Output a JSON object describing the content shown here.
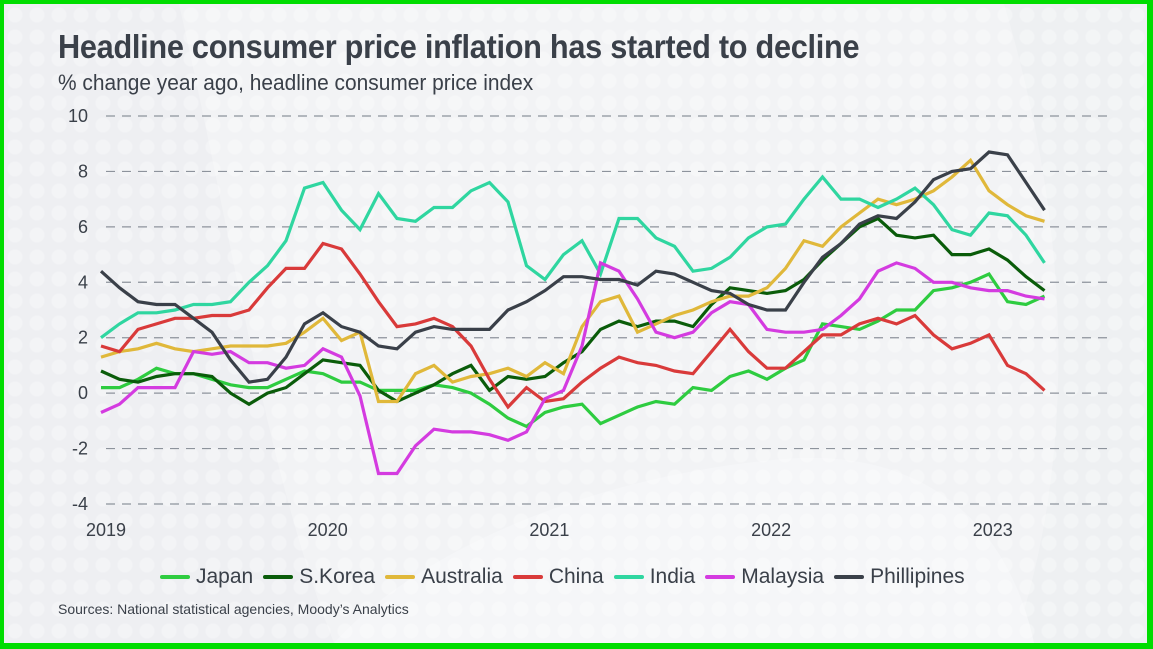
{
  "header": {
    "title": "Headline consumer price inflation has started to decline",
    "subtitle": "% change year ago, headline consumer price index"
  },
  "footer": {
    "source": "Sources: National statistical agencies, Moody’s Analytics"
  },
  "colors": {
    "frame_border": "#00dd00",
    "background": "#f2f3f5",
    "text": "#3a4049",
    "grid": "#8d939c"
  },
  "chart_data": {
    "type": "line",
    "title": "Headline consumer price inflation has started to decline",
    "subtitle": "% change year ago, headline consumer price index",
    "xlabel": "",
    "ylabel": "",
    "ylim": [
      -4,
      10
    ],
    "yticks": [
      "10",
      "8",
      "6",
      "4",
      "2",
      "0",
      "-2",
      "-4"
    ],
    "ytick_values": [
      10,
      8,
      6,
      4,
      2,
      0,
      -2,
      -4
    ],
    "xticks": [
      "2019",
      "2020",
      "2021",
      "2022",
      "2023"
    ],
    "x_start": "2019-01",
    "x_end": "2023-03",
    "frequency": "monthly",
    "grid": "horizontal dashed",
    "legend_position": "bottom",
    "series": [
      {
        "name": "Japan",
        "color": "#2ecc40",
        "values": [
          0.2,
          0.2,
          0.5,
          0.9,
          0.7,
          0.7,
          0.5,
          0.3,
          0.2,
          0.2,
          0.5,
          0.8,
          0.7,
          0.4,
          0.4,
          0.1,
          0.1,
          0.1,
          0.3,
          0.2,
          0.0,
          -0.4,
          -0.9,
          -1.2,
          -0.7,
          -0.5,
          -0.4,
          -1.1,
          -0.8,
          -0.5,
          -0.3,
          -0.4,
          0.2,
          0.1,
          0.6,
          0.8,
          0.5,
          0.9,
          1.2,
          2.5,
          2.4,
          2.3,
          2.6,
          3.0,
          3.0,
          3.7,
          3.8,
          4.0,
          4.3,
          3.3,
          3.2,
          3.5
        ]
      },
      {
        "name": "S.Korea",
        "color": "#0a5c0a",
        "values": [
          0.8,
          0.5,
          0.4,
          0.6,
          0.7,
          0.7,
          0.6,
          0.0,
          -0.4,
          0.0,
          0.2,
          0.7,
          1.2,
          1.1,
          1.0,
          0.1,
          -0.3,
          0.0,
          0.3,
          0.7,
          1.0,
          0.1,
          0.6,
          0.5,
          0.6,
          1.1,
          1.5,
          2.3,
          2.6,
          2.4,
          2.6,
          2.6,
          2.4,
          3.2,
          3.8,
          3.7,
          3.6,
          3.7,
          4.1,
          4.8,
          5.4,
          6.0,
          6.3,
          5.7,
          5.6,
          5.7,
          5.0,
          5.0,
          5.2,
          4.8,
          4.2,
          3.7
        ]
      },
      {
        "name": "Australia",
        "color": "#e0b83a",
        "values": [
          1.3,
          1.5,
          1.6,
          1.8,
          1.6,
          1.5,
          1.6,
          1.7,
          1.7,
          1.7,
          1.8,
          2.2,
          2.7,
          1.9,
          2.2,
          -0.3,
          -0.3,
          0.7,
          1.0,
          0.4,
          0.6,
          0.7,
          0.9,
          0.6,
          1.1,
          0.7,
          2.4,
          3.3,
          3.5,
          2.2,
          2.5,
          2.8,
          3.0,
          3.3,
          3.5,
          3.5,
          3.8,
          4.5,
          5.5,
          5.3,
          6.0,
          6.5,
          7.0,
          6.8,
          7.0,
          7.3,
          7.8,
          8.4,
          7.3,
          6.8,
          6.4,
          6.2
        ]
      },
      {
        "name": "China",
        "color": "#d93a3a",
        "values": [
          1.7,
          1.5,
          2.3,
          2.5,
          2.7,
          2.7,
          2.8,
          2.8,
          3.0,
          3.8,
          4.5,
          4.5,
          5.4,
          5.2,
          4.3,
          3.3,
          2.4,
          2.5,
          2.7,
          2.4,
          1.7,
          0.5,
          -0.5,
          0.2,
          -0.3,
          -0.2,
          0.4,
          0.9,
          1.3,
          1.1,
          1.0,
          0.8,
          0.7,
          1.5,
          2.3,
          1.5,
          0.9,
          0.9,
          1.5,
          2.1,
          2.1,
          2.5,
          2.7,
          2.5,
          2.8,
          2.1,
          1.6,
          1.8,
          2.1,
          1.0,
          0.7,
          0.1
        ]
      },
      {
        "name": "India",
        "color": "#2fd6a0",
        "values": [
          2.0,
          2.5,
          2.9,
          2.9,
          3.0,
          3.2,
          3.2,
          3.3,
          4.0,
          4.6,
          5.5,
          7.4,
          7.6,
          6.6,
          5.9,
          7.2,
          6.3,
          6.2,
          6.7,
          6.7,
          7.3,
          7.6,
          6.9,
          4.6,
          4.1,
          5.0,
          5.5,
          4.3,
          6.3,
          6.3,
          5.6,
          5.3,
          4.4,
          4.5,
          4.9,
          5.6,
          6.0,
          6.1,
          7.0,
          7.8,
          7.0,
          7.0,
          6.7,
          7.0,
          7.4,
          6.8,
          5.9,
          5.7,
          6.5,
          6.4,
          5.7,
          4.7
        ]
      },
      {
        "name": "Malaysia",
        "color": "#d43be0",
        "values": [
          -0.7,
          -0.4,
          0.2,
          0.2,
          0.2,
          1.5,
          1.4,
          1.5,
          1.1,
          1.1,
          0.9,
          1.0,
          1.6,
          1.3,
          -0.1,
          -2.9,
          -2.9,
          -1.9,
          -1.3,
          -1.4,
          -1.4,
          -1.5,
          -1.7,
          -1.4,
          -0.2,
          0.1,
          1.7,
          4.7,
          4.4,
          3.4,
          2.2,
          2.0,
          2.2,
          2.9,
          3.3,
          3.2,
          2.3,
          2.2,
          2.2,
          2.3,
          2.8,
          3.4,
          4.4,
          4.7,
          4.5,
          4.0,
          4.0,
          3.8,
          3.7,
          3.7,
          3.5,
          3.4
        ]
      },
      {
        "name": "Phillipines",
        "color": "#3a4049",
        "values": [
          4.4,
          3.8,
          3.3,
          3.2,
          3.2,
          2.7,
          2.2,
          1.2,
          0.4,
          0.5,
          1.3,
          2.5,
          2.9,
          2.4,
          2.2,
          1.7,
          1.6,
          2.2,
          2.4,
          2.3,
          2.3,
          2.3,
          3.0,
          3.3,
          3.7,
          4.2,
          4.2,
          4.1,
          4.1,
          3.9,
          4.4,
          4.3,
          4.0,
          3.7,
          3.6,
          3.2,
          3.0,
          3.0,
          4.0,
          4.9,
          5.4,
          6.1,
          6.4,
          6.3,
          6.9,
          7.7,
          8.0,
          8.1,
          8.7,
          8.6,
          7.6,
          6.6
        ]
      }
    ]
  }
}
